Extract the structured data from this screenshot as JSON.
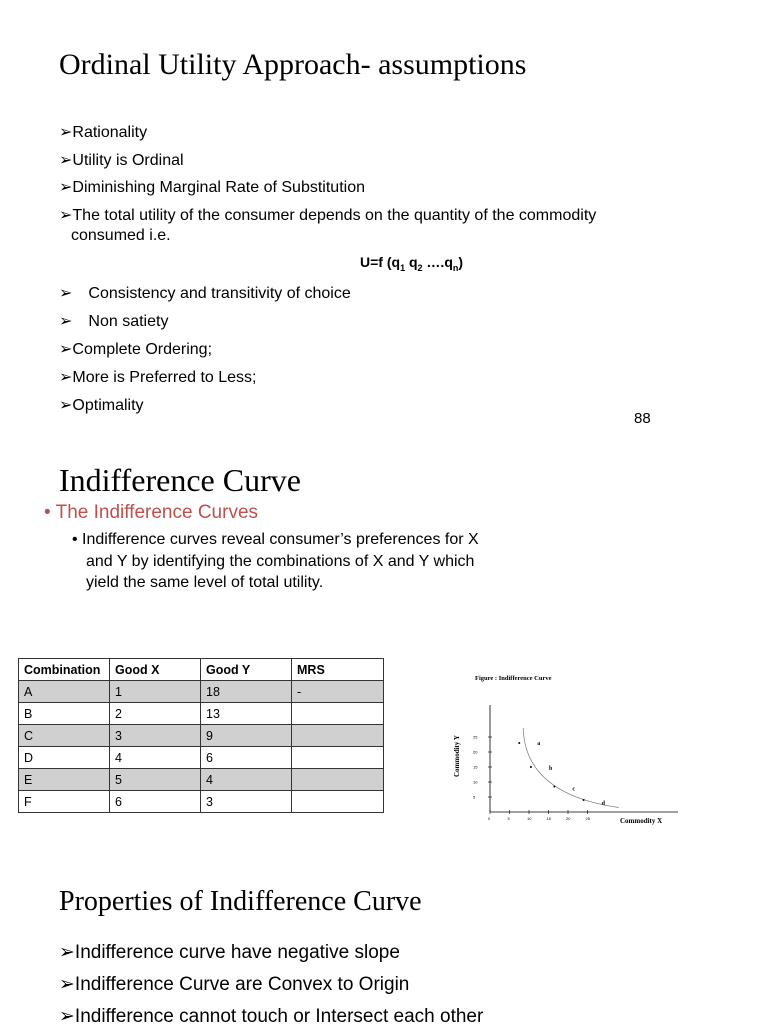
{
  "slide1": {
    "title": "Ordinal Utility Approach- assumptions",
    "bullets": [
      "Rationality",
      "Utility is Ordinal",
      "Diminishing Marginal Rate of Substitution",
      "The total utility of the consumer depends on the quantity of the commodity"
    ],
    "continuation": "consumed i.e.",
    "formula": {
      "prefix": "U=f (q",
      "s1": "1",
      "mid1": " q",
      "s2": "2",
      "mid2": " ….q",
      "sn": "n",
      "suffix": ")"
    },
    "bullets2": [
      "Consistency and transitivity of choice",
      "Non satiety",
      "Complete Ordering;",
      "More is Preferred to Less;",
      "Optimality"
    ],
    "bullet_glyph": "➢",
    "page_number": "88"
  },
  "slide2": {
    "title": "Indifference Curve",
    "subheading": "The Indifference Curves",
    "subheading_color": "#c0504d",
    "text_lines": [
      "Indifference curves reveal consumer’s preferences for X",
      "and Y by identifying the combinations of X and Y which",
      "yield the same level of total utility."
    ],
    "table": {
      "headers": [
        "Combination",
        "Good X",
        "Good Y",
        "MRS"
      ],
      "rows": [
        [
          "A",
          "1",
          "18",
          "-"
        ],
        [
          "B",
          "2",
          "13",
          ""
        ],
        [
          "C",
          "3",
          "9",
          ""
        ],
        [
          "D",
          "4",
          "6",
          ""
        ],
        [
          "E",
          "5",
          "4",
          ""
        ],
        [
          "F",
          "6",
          "3",
          ""
        ]
      ]
    }
  },
  "chart_data": {
    "type": "line",
    "title": "Figure : Indifference Curve",
    "xlabel": "Commodity X",
    "ylabel": "Commodity Y",
    "x_ticks": [
      "0",
      "5",
      "10",
      "15",
      "20",
      "25"
    ],
    "y_ticks": [
      "5",
      "10",
      "15",
      "20",
      "25"
    ],
    "points": [
      {
        "label": "a",
        "x": 7.5,
        "y": 23
      },
      {
        "label": "b",
        "x": 10.5,
        "y": 15
      },
      {
        "label": "c",
        "x": 16.5,
        "y": 8.5
      },
      {
        "label": "d",
        "x": 24,
        "y": 4
      }
    ]
  },
  "slide3": {
    "title": "Properties of Indifference Curve",
    "bullets": [
      "Indifference curve have negative slope",
      "Indifference Curve are Convex to Origin",
      "Indifference cannot touch or Intersect each other"
    ]
  }
}
